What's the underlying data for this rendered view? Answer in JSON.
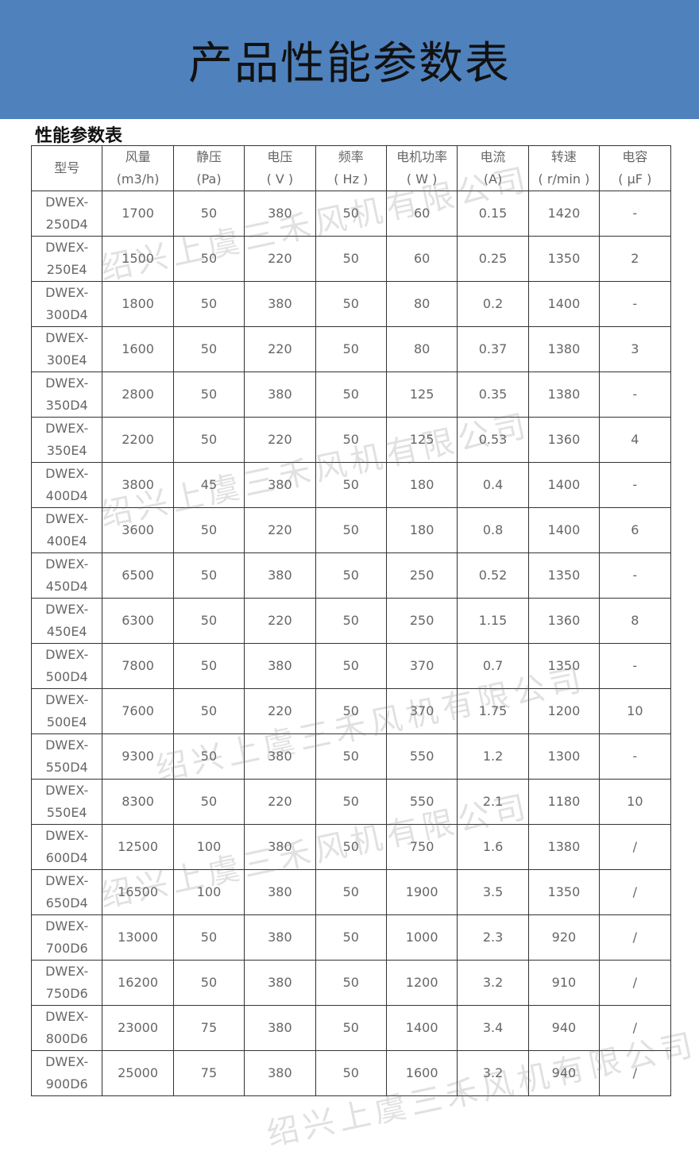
{
  "banner": {
    "title": "产品性能参数表"
  },
  "section_title": "性能参数表",
  "watermark": "绍兴上虞三禾风机有限公司",
  "colors": {
    "banner": "#4f81bd"
  },
  "table": {
    "headers": [
      {
        "l1": "型号",
        "l2": ""
      },
      {
        "l1": "风量",
        "l2": "(m3/h)"
      },
      {
        "l1": "静压",
        "l2": "(Pa)"
      },
      {
        "l1": "电压",
        "l2": "( V )"
      },
      {
        "l1": "频率",
        "l2": "( Hz )"
      },
      {
        "l1": "电机功率",
        "l2": "( W )"
      },
      {
        "l1": "电流",
        "l2": "(A)"
      },
      {
        "l1": "转速",
        "l2": "( r/min )"
      },
      {
        "l1": "电容",
        "l2": "( μF )"
      }
    ],
    "rows": [
      [
        "DWEX-",
        "250D4",
        "1700",
        "50",
        "380",
        "50",
        "60",
        "0.15",
        "1420",
        "-"
      ],
      [
        "DWEX-",
        "250E4",
        "1500",
        "50",
        "220",
        "50",
        "60",
        "0.25",
        "1350",
        "2"
      ],
      [
        "DWEX-",
        "300D4",
        "1800",
        "50",
        "380",
        "50",
        "80",
        "0.2",
        "1400",
        "-"
      ],
      [
        "DWEX-",
        "300E4",
        "1600",
        "50",
        "220",
        "50",
        "80",
        "0.37",
        "1380",
        "3"
      ],
      [
        "DWEX-",
        "350D4",
        "2800",
        "50",
        "380",
        "50",
        "125",
        "0.35",
        "1380",
        "-"
      ],
      [
        "DWEX-",
        "350E4",
        "2200",
        "50",
        "220",
        "50",
        "125",
        "0.53",
        "1360",
        "4"
      ],
      [
        "DWEX-",
        "400D4",
        "3800",
        "45",
        "380",
        "50",
        "180",
        "0.4",
        "1400",
        "-"
      ],
      [
        "DWEX-",
        "400E4",
        "3600",
        "50",
        "220",
        "50",
        "180",
        "0.8",
        "1400",
        "6"
      ],
      [
        "DWEX-",
        "450D4",
        "6500",
        "50",
        "380",
        "50",
        "250",
        "0.52",
        "1350",
        "-"
      ],
      [
        "DWEX-",
        "450E4",
        "6300",
        "50",
        "220",
        "50",
        "250",
        "1.15",
        "1360",
        "8"
      ],
      [
        "DWEX-",
        "500D4",
        "7800",
        "50",
        "380",
        "50",
        "370",
        "0.7",
        "1350",
        "-"
      ],
      [
        "DWEX-",
        "500E4",
        "7600",
        "50",
        "220",
        "50",
        "370",
        "1.75",
        "1200",
        "10"
      ],
      [
        "DWEX-",
        "550D4",
        "9300",
        "50",
        "380",
        "50",
        "550",
        "1.2",
        "1300",
        "-"
      ],
      [
        "DWEX-",
        "550E4",
        "8300",
        "50",
        "220",
        "50",
        "550",
        "2.1",
        "1180",
        "10"
      ],
      [
        "DWEX-",
        "600D4",
        "12500",
        "100",
        "380",
        "50",
        "750",
        "1.6",
        "1380",
        "/"
      ],
      [
        "DWEX-",
        "650D4",
        "16500",
        "100",
        "380",
        "50",
        "1900",
        "3.5",
        "1350",
        "/"
      ],
      [
        "DWEX-",
        "700D6",
        "13000",
        "50",
        "380",
        "50",
        "1000",
        "2.3",
        "920",
        "/"
      ],
      [
        "DWEX-",
        "750D6",
        "16200",
        "50",
        "380",
        "50",
        "1200",
        "3.2",
        "910",
        "/"
      ],
      [
        "DWEX-",
        "800D6",
        "23000",
        "75",
        "380",
        "50",
        "1400",
        "3.4",
        "940",
        "/"
      ],
      [
        "DWEX-",
        "900D6",
        "25000",
        "75",
        "380",
        "50",
        "1600",
        "3.2",
        "940",
        "/"
      ]
    ]
  }
}
